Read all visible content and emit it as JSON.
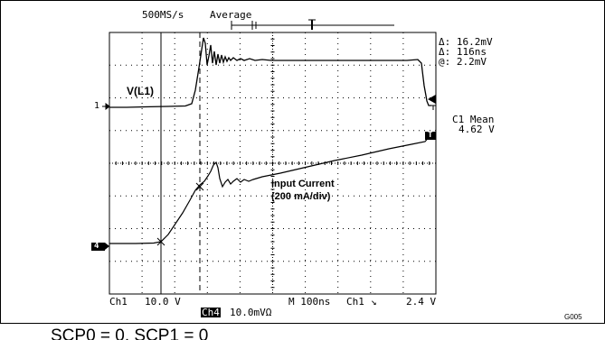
{
  "header": {
    "sample_rate": "500MS/s",
    "acq_mode": "Average"
  },
  "measurements": {
    "delta_v": "Δ: 16.2mV",
    "delta_t": "Δ: 116ns",
    "at": "@: 2.2mV",
    "mean_title": "C1 Mean",
    "mean_value": "4.62 V"
  },
  "traces": {
    "ch1_label": "V(L1)",
    "ch4_label_line1": "Input Current",
    "ch4_label_line2": "(200 mA/div)",
    "ch1_marker": "1",
    "ch4_marker": "4",
    "trigger_marker": "T"
  },
  "footer": {
    "ch1_name": "Ch1",
    "ch1_scale": "10.0 V",
    "ch4_name": "Ch4",
    "ch4_scale": "10.0mVΩ",
    "timebase": "M 100ns",
    "trigger_ch": "Ch1",
    "trigger_slope": "↘",
    "trigger_level": "2.4 V"
  },
  "figure_id": "G005",
  "cutoff_text": "SCP0 = 0, SCP1 = 0"
}
